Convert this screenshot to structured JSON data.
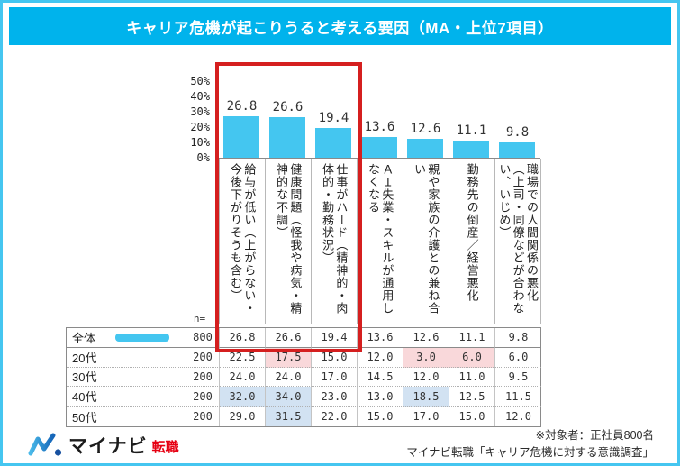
{
  "title": "キャリア危機が起こりうると考える要因（MA・上位7項目）",
  "chart_data": {
    "type": "bar",
    "title": "キャリア危機が起こりうると考える要因（MA・上位7項目）",
    "categories": [
      "給与が低い（上がらない・今後下がりそうも含む）",
      "健康問題（怪我や病気・精神的な不調）",
      "仕事がハード（精神的・肉体的・勤務状況）",
      "ＡＩ失業・スキルが通用しなくなる",
      "親や家族の介護との兼ね合い",
      "勤務先の倒産／経営悪化",
      "職場での人間関係の悪化（上司・同僚などが合わない、いじめ）"
    ],
    "values": [
      26.8,
      26.6,
      19.4,
      13.6,
      12.6,
      11.1,
      9.8
    ],
    "unit": "%",
    "yticks": [
      "50%",
      "40%",
      "30%",
      "20%",
      "10%",
      "0%"
    ],
    "ylim": [
      0,
      50
    ],
    "grid": false,
    "bar_color": "#44c6f0",
    "frame_highlight_indices": [
      0,
      1,
      2
    ],
    "frame_color": "#d51f1f"
  },
  "table": {
    "n_label": "n=",
    "rows": [
      {
        "label": "全体",
        "n": "800",
        "swatch": true,
        "values": [
          "26.8",
          "26.6",
          "19.4",
          "13.6",
          "12.6",
          "11.1",
          "9.8"
        ],
        "cell_colors": [
          "",
          "",
          "",
          "",
          "",
          "",
          ""
        ]
      },
      {
        "label": "20代",
        "n": "200",
        "swatch": false,
        "values": [
          "22.5",
          "17.5",
          "15.0",
          "12.0",
          "3.0",
          "6.0",
          "6.0"
        ],
        "cell_colors": [
          "",
          "pink",
          "",
          "",
          "pink",
          "pink",
          ""
        ]
      },
      {
        "label": "30代",
        "n": "200",
        "swatch": false,
        "values": [
          "24.0",
          "24.0",
          "17.0",
          "14.5",
          "12.0",
          "11.0",
          "9.5"
        ],
        "cell_colors": [
          "",
          "",
          "",
          "",
          "",
          "",
          ""
        ]
      },
      {
        "label": "40代",
        "n": "200",
        "swatch": false,
        "values": [
          "32.0",
          "34.0",
          "23.0",
          "13.0",
          "18.5",
          "12.5",
          "11.5"
        ],
        "cell_colors": [
          "blue",
          "blue",
          "",
          "",
          "blue",
          "",
          ""
        ]
      },
      {
        "label": "50代",
        "n": "200",
        "swatch": false,
        "values": [
          "29.0",
          "31.5",
          "22.0",
          "15.0",
          "17.0",
          "15.0",
          "12.0"
        ],
        "cell_colors": [
          "",
          "blue",
          "",
          "",
          "",
          "",
          ""
        ]
      }
    ],
    "highlight_colors": {
      "pink": "#f9d8da",
      "blue": "#d2e2f2"
    }
  },
  "footer": {
    "logo_brand": "マイナビ",
    "logo_service": "転職",
    "note_line1": "※対象者：正社員800名",
    "note_line2": "マイナビ転職「キャリア危機に対する意識調査」"
  },
  "colors": {
    "header_bg": "#00b3ec",
    "outer_border": "#45c6f0",
    "bar": "#44c6f0",
    "red_frame": "#d51f1f"
  }
}
